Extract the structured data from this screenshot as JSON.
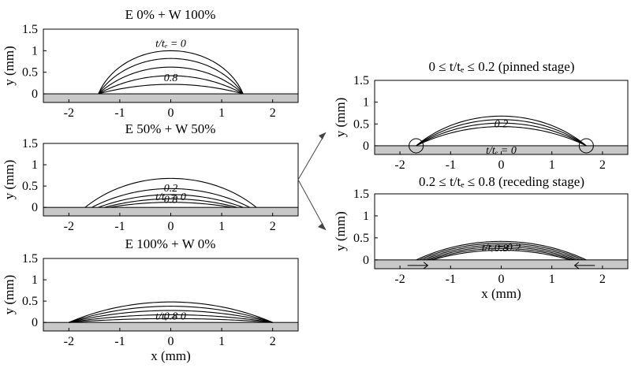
{
  "chart_data": [
    {
      "type": "line",
      "title": "E 0% + W 100%",
      "ylabel": "y (mm)",
      "xlabel": "",
      "xlim": [
        -2.5,
        2.5
      ],
      "ylim": [
        -0.2,
        1.5
      ],
      "xticks": [
        "-2",
        "-1",
        "0",
        "1",
        "2"
      ],
      "yticks": [
        "0",
        "0.5",
        "1",
        "1.5"
      ],
      "grid": false,
      "series": [
        {
          "half_width": 1.42,
          "height": 1.0
        },
        {
          "half_width": 1.42,
          "height": 0.82
        },
        {
          "half_width": 1.42,
          "height": 0.62
        },
        {
          "half_width": 1.42,
          "height": 0.42
        },
        {
          "half_width": 1.42,
          "height": 0.22
        }
      ],
      "annotations": {
        "top": "t/tₑ = 0",
        "bottom": "0.8"
      }
    },
    {
      "type": "line",
      "title": "E 50% + W 50%",
      "ylabel": "y (mm)",
      "xlabel": "",
      "xlim": [
        -2.5,
        2.5
      ],
      "ylim": [
        -0.2,
        1.5
      ],
      "xticks": [
        "-2",
        "-1",
        "0",
        "1",
        "2"
      ],
      "yticks": [
        "0",
        "0.5",
        "1",
        "1.5"
      ],
      "grid": false,
      "series": [
        {
          "half_width": 1.68,
          "height": 0.68
        },
        {
          "half_width": 1.55,
          "height": 0.44
        },
        {
          "half_width": 1.42,
          "height": 0.3
        },
        {
          "half_width": 1.3,
          "height": 0.2
        },
        {
          "half_width": 1.2,
          "height": 0.12
        }
      ],
      "annotations": {
        "top": "t/tₑ = 0",
        "middle": "0.2",
        "bottom": "0.8"
      }
    },
    {
      "type": "line",
      "title": "E 100% + W 0%",
      "ylabel": "y (mm)",
      "xlabel": "x (mm)",
      "xlim": [
        -2.5,
        2.5
      ],
      "ylim": [
        -0.2,
        1.5
      ],
      "xticks": [
        "-2",
        "-1",
        "0",
        "1",
        "2"
      ],
      "yticks": [
        "0",
        "0.5",
        "1",
        "1.5"
      ],
      "grid": false,
      "series": [
        {
          "half_width": 2.0,
          "height": 0.48
        },
        {
          "half_width": 2.0,
          "height": 0.38
        },
        {
          "half_width": 2.0,
          "height": 0.28
        },
        {
          "half_width": 2.0,
          "height": 0.18
        },
        {
          "half_width": 2.0,
          "height": 0.09
        }
      ],
      "annotations": {
        "top": "t/tₑ = 0",
        "bottom": "0.8"
      }
    },
    {
      "type": "line",
      "title": "0 ≤ t/tₑ ≤ 0.2 (pinned stage)",
      "ylabel": "y (mm)",
      "xlabel": "",
      "xlim": [
        -2.5,
        2.5
      ],
      "ylim": [
        -0.2,
        1.5
      ],
      "xticks": [
        "-2",
        "-1",
        "0",
        "1",
        "2"
      ],
      "yticks": [
        "0",
        "0.5",
        "1",
        "1.5"
      ],
      "grid": false,
      "series": [
        {
          "half_width": 1.68,
          "height": 0.68
        },
        {
          "half_width": 1.68,
          "height": 0.6
        },
        {
          "half_width": 1.68,
          "height": 0.52
        },
        {
          "half_width": 1.68,
          "height": 0.44
        }
      ],
      "annotations": {
        "top": "t/tₑ = 0",
        "bottom": "0.2"
      }
    },
    {
      "type": "line",
      "title": "0.2 ≤ t/tₑ  ≤ 0.8 (receding stage)",
      "ylabel": "y (mm)",
      "xlabel": "x (mm)",
      "xlim": [
        -2.5,
        2.5
      ],
      "ylim": [
        -0.2,
        1.5
      ],
      "xticks": [
        "-2",
        "-1",
        "0",
        "1",
        "2"
      ],
      "yticks": [
        "0",
        "0.5",
        "1",
        "1.5"
      ],
      "grid": false,
      "series": [
        {
          "half_width": 1.68,
          "height": 0.42
        },
        {
          "half_width": 1.62,
          "height": 0.38
        },
        {
          "half_width": 1.55,
          "height": 0.34
        },
        {
          "half_width": 1.48,
          "height": 0.3
        },
        {
          "half_width": 1.42,
          "height": 0.26
        },
        {
          "half_width": 1.36,
          "height": 0.22
        }
      ],
      "annotations": {
        "top": "t/tₑ = 0.2",
        "bottom": "0.8"
      }
    }
  ]
}
